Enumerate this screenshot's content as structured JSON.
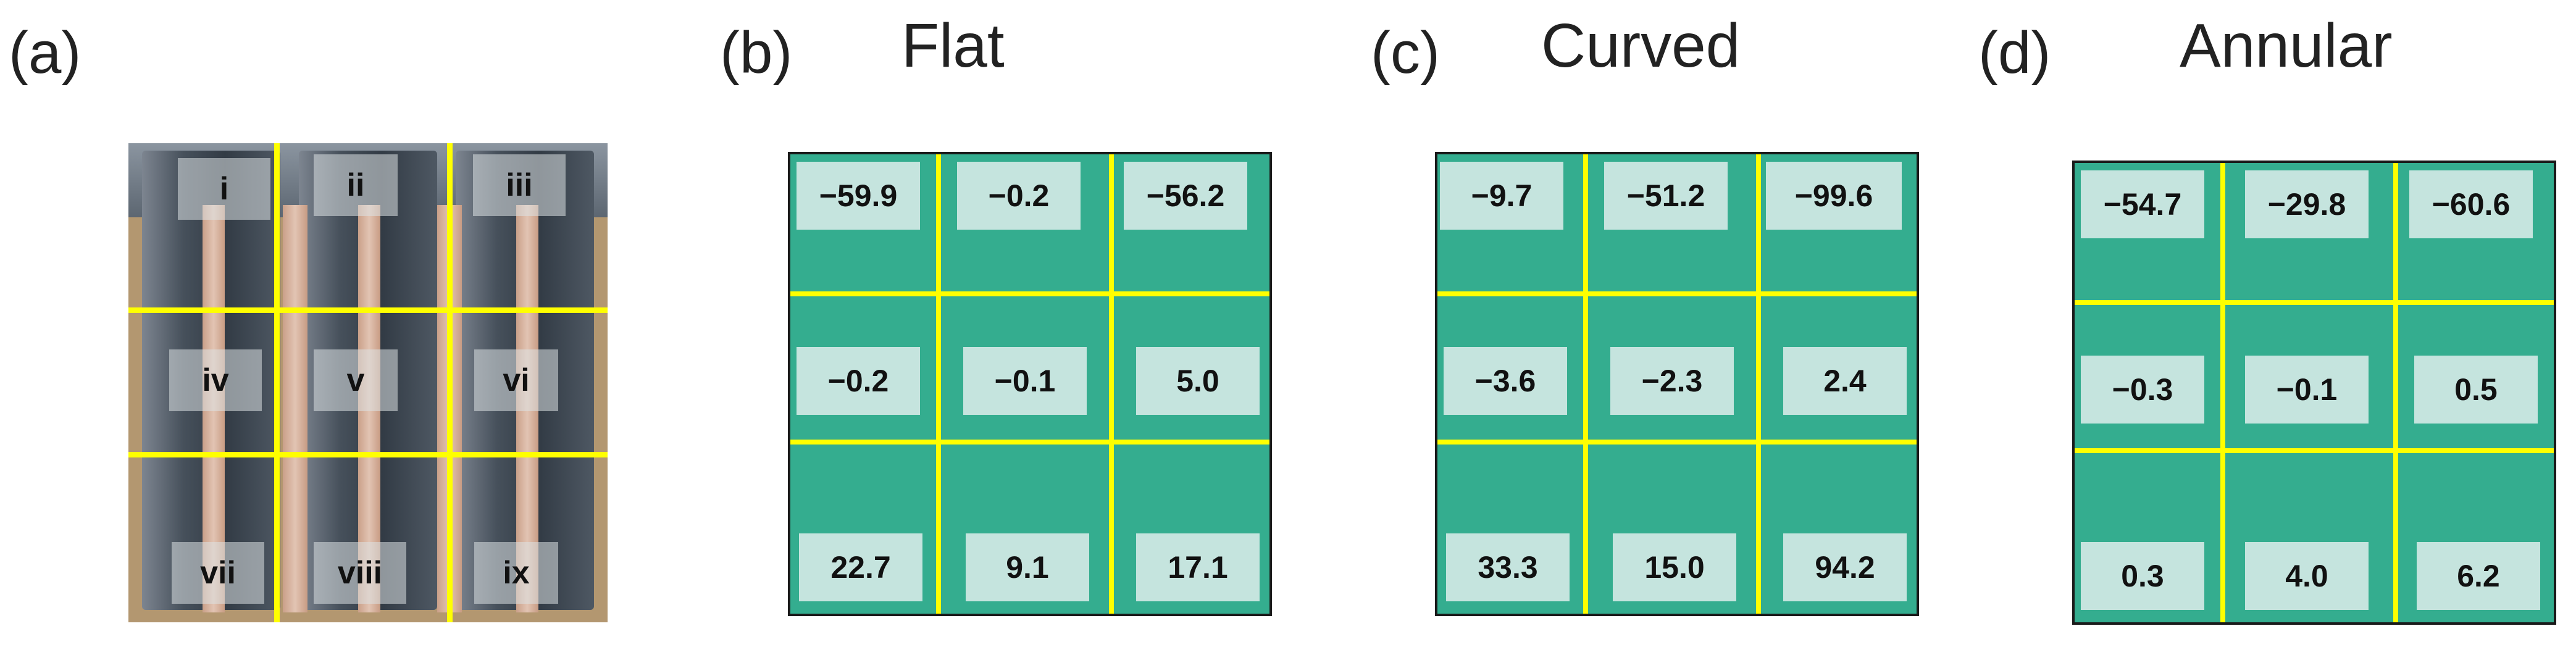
{
  "panel_a": {
    "letter": "(a)",
    "regions": [
      "i",
      "ii",
      "iii",
      "iv",
      "v",
      "vi",
      "vii",
      "viii",
      "ix"
    ]
  },
  "panel_b": {
    "letter": "(b)",
    "title": "Flat",
    "values": [
      "−59.9",
      "−0.2",
      "−56.2",
      "−0.2",
      "−0.1",
      "5.0",
      "22.7",
      "9.1",
      "17.1"
    ]
  },
  "panel_c": {
    "letter": "(c)",
    "title": "Curved",
    "values": [
      "−9.7",
      "−51.2",
      "−99.6",
      "−3.6",
      "−2.3",
      "2.4",
      "33.3",
      "15.0",
      "94.2"
    ]
  },
  "panel_d": {
    "letter": "(d)",
    "title": "Annular",
    "values": [
      "−54.7",
      "−29.8",
      "−60.6",
      "−0.3",
      "−0.1",
      "0.5",
      "0.3",
      "4.0",
      "6.2"
    ]
  },
  "colors": {
    "grid_fill": "#34ad8f",
    "grid_lines": "#ffff00",
    "value_box": "#c5e4de"
  }
}
